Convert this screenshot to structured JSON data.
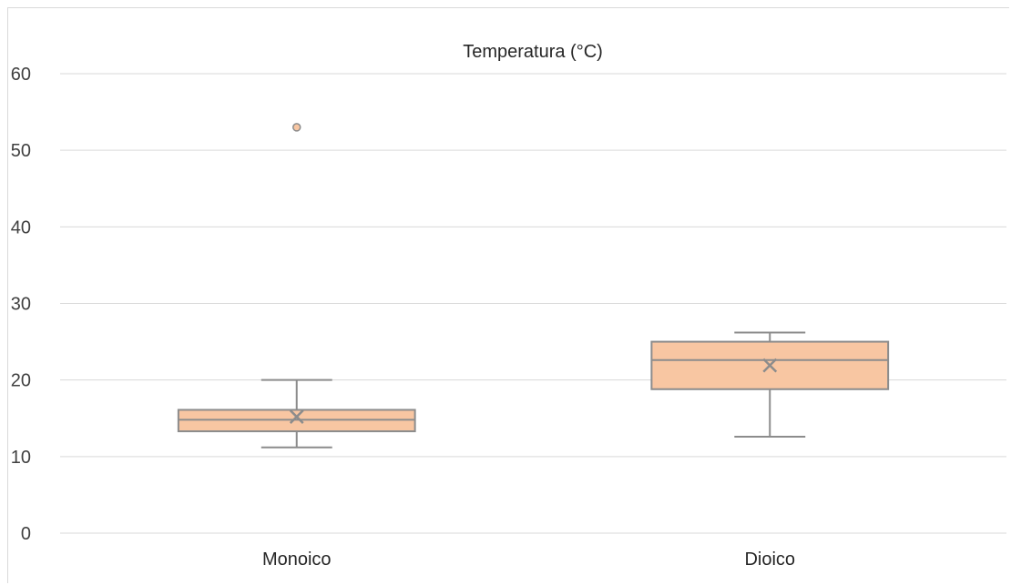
{
  "chart_data": {
    "type": "boxplot",
    "title": "Temperatura (°C)",
    "xlabel": "",
    "ylabel": "",
    "ylim": [
      0,
      60
    ],
    "yticks": [
      0,
      10,
      20,
      30,
      40,
      50,
      60
    ],
    "grid": true,
    "categories": [
      "Monoico",
      "Dioico"
    ],
    "boxes": [
      {
        "category": "Monoico",
        "min": 11.2,
        "q1": 13.3,
        "median": 14.8,
        "q3": 16.1,
        "max": 20.0,
        "mean": 15.2,
        "outliers": [
          53.0
        ]
      },
      {
        "category": "Dioico",
        "min": 12.6,
        "q1": 18.8,
        "median": 22.6,
        "q3": 25.0,
        "max": 26.2,
        "mean": 21.9,
        "outliers": []
      }
    ],
    "colors": {
      "box_fill": "#f8c6a2",
      "box_stroke": "#8c8c8c",
      "grid": "#d9d9d9",
      "outlier_fill": "#f8c6a2"
    }
  }
}
